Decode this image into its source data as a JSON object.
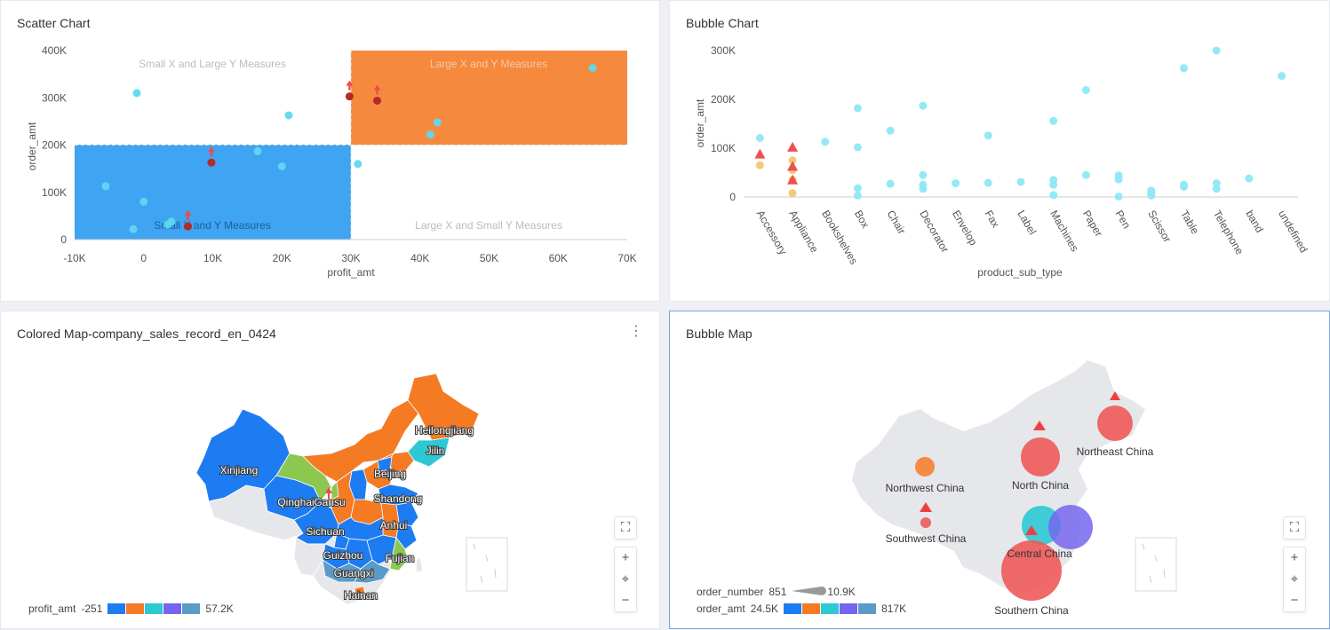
{
  "panels": {
    "scatter": {
      "title": "Scatter Chart",
      "quadrants": {
        "top_left": "Small X and Large Y Measures",
        "top_right": "Large X and Y Measures",
        "bottom_left": "Small X and Y Measures",
        "bottom_right": "Large X and Small Y Measures"
      },
      "colors": {
        "bottom_left_fill": "#2a9af0",
        "top_right_fill": "#f47a24",
        "point": "#5fd8f0",
        "highlight": "#b32a2a",
        "arrow": "#f04a4a"
      }
    },
    "bubble": {
      "title": "Bubble Chart",
      "colors": {
        "point": "#8ee8f5",
        "triangle": "#ee4f4f",
        "yellow": "#f3c97a"
      }
    },
    "colored_map": {
      "title": "Colored Map-company_sales_record_en_0424",
      "more_icon": "⋮",
      "provinces": [
        "Heilongjiang",
        "Jilin",
        "Beijing",
        "Xinjiang",
        "Qinghai",
        "Gansu",
        "Shandong",
        "Sichuan",
        "Anhui",
        "Guizhou",
        "Fujian",
        "Guangxi",
        "Hainan"
      ],
      "legend": {
        "label": "profit_amt",
        "min": "-251",
        "max": "57.2K",
        "colors": [
          "#1e7cf2",
          "#f47a24",
          "#2cc9d4",
          "#7466ee",
          "#5a9bc8"
        ]
      },
      "map_colors": {
        "blue": "#1e7cf2",
        "orange": "#f47a24",
        "teal": "#2cc9d4",
        "green": "#8cc850",
        "gray": "#e6e7ea",
        "lightblue": "#5a9bc8"
      }
    },
    "bubble_map": {
      "title": "Bubble Map",
      "regions": [
        "Northeast China",
        "North China",
        "Northwest China",
        "Central China",
        "Southwest China",
        "Southern China"
      ],
      "legend": {
        "size_label": "order_number",
        "size_min": "851",
        "size_max": "10.9K",
        "color_label": "order_amt",
        "color_min": "24.5K",
        "color_max": "817K",
        "colors": [
          "#1e7cf2",
          "#f47a24",
          "#2cc9d4",
          "#7466ee",
          "#5a9bc8"
        ]
      }
    }
  },
  "map_controls": {
    "fullscreen": "⛶",
    "zoom_in": "+",
    "locate": "⌖",
    "zoom_out": "−"
  },
  "chart_data": [
    {
      "type": "scatter",
      "title": "Scatter Chart",
      "xlabel": "profit_amt",
      "ylabel": "order_amt",
      "xlim": [
        -10000,
        70000
      ],
      "ylim": [
        0,
        400000
      ],
      "x_ticks": [
        "-10K",
        "0",
        "10K",
        "20K",
        "30K",
        "40K",
        "50K",
        "60K",
        "70K"
      ],
      "y_ticks": [
        "0",
        "100K",
        "200K",
        "300K",
        "400K"
      ],
      "reference_x": 30000,
      "reference_y": 200000,
      "points": [
        {
          "x": -1000,
          "y": 310000
        },
        {
          "x": 21000,
          "y": 263000
        },
        {
          "x": 65000,
          "y": 363000
        },
        {
          "x": 42500,
          "y": 248000
        },
        {
          "x": 41500,
          "y": 222000
        },
        {
          "x": 16500,
          "y": 187000
        },
        {
          "x": 20000,
          "y": 155000
        },
        {
          "x": 31000,
          "y": 160000
        },
        {
          "x": -5500,
          "y": 113000
        },
        {
          "x": 0,
          "y": 80000
        },
        {
          "x": 4000,
          "y": 38000
        },
        {
          "x": 3500,
          "y": 32000
        },
        {
          "x": -1500,
          "y": 22000
        }
      ],
      "highlighted_points": [
        {
          "x": 29800,
          "y": 303000
        },
        {
          "x": 33800,
          "y": 294000
        },
        {
          "x": 9800,
          "y": 163000
        },
        {
          "x": 6400,
          "y": 28000
        }
      ]
    },
    {
      "type": "scatter",
      "title": "Bubble Chart",
      "xlabel": "product_sub_type",
      "ylabel": "order_amt",
      "ylim": [
        0,
        300000
      ],
      "y_ticks": [
        "0",
        "100K",
        "200K",
        "300K"
      ],
      "categories": [
        "Accessory",
        "Appliance",
        "Bookshelves",
        "Box",
        "Chair",
        "Decorator",
        "Envelop",
        "Fax",
        "Label",
        "Machines",
        "Paper",
        "Pen",
        "Scissor",
        "Table",
        "Telephone",
        "band",
        "undefined"
      ],
      "points": [
        {
          "category": "Accessory",
          "y": 121000
        },
        {
          "category": "Bookshelves",
          "y": 113000
        },
        {
          "category": "Box",
          "y": 182000
        },
        {
          "category": "Box",
          "y": 102000
        },
        {
          "category": "Box",
          "y": 18000
        },
        {
          "category": "Box",
          "y": 3000
        },
        {
          "category": "Chair",
          "y": 136000
        },
        {
          "category": "Chair",
          "y": 27000
        },
        {
          "category": "Decorator",
          "y": 187000
        },
        {
          "category": "Decorator",
          "y": 45000
        },
        {
          "category": "Decorator",
          "y": 25000
        },
        {
          "category": "Decorator",
          "y": 17000
        },
        {
          "category": "Envelop",
          "y": 28000
        },
        {
          "category": "Fax",
          "y": 126000
        },
        {
          "category": "Fax",
          "y": 29000
        },
        {
          "category": "Label",
          "y": 31000
        },
        {
          "category": "Machines",
          "y": 156000
        },
        {
          "category": "Machines",
          "y": 35000
        },
        {
          "category": "Machines",
          "y": 25000
        },
        {
          "category": "Machines",
          "y": 4000
        },
        {
          "category": "Paper",
          "y": 219000
        },
        {
          "category": "Paper",
          "y": 45000
        },
        {
          "category": "Pen",
          "y": 44000
        },
        {
          "category": "Pen",
          "y": 36000
        },
        {
          "category": "Pen",
          "y": 1000
        },
        {
          "category": "Scissor",
          "y": 13000
        },
        {
          "category": "Scissor",
          "y": 8000
        },
        {
          "category": "Scissor",
          "y": 3000
        },
        {
          "category": "Table",
          "y": 264000
        },
        {
          "category": "Table",
          "y": 25000
        },
        {
          "category": "Table",
          "y": 21000
        },
        {
          "category": "Telephone",
          "y": 300000
        },
        {
          "category": "Telephone",
          "y": 28000
        },
        {
          "category": "Telephone",
          "y": 17000
        },
        {
          "category": "band",
          "y": 38000
        },
        {
          "category": "undefined",
          "y": 248000
        }
      ],
      "highlighted_points": [
        {
          "category": "Accessory",
          "y": 65000
        },
        {
          "category": "Appliance",
          "y": 75000
        },
        {
          "category": "Appliance",
          "y": 55000
        },
        {
          "category": "Appliance",
          "y": 35000
        },
        {
          "category": "Appliance",
          "y": 8000
        }
      ],
      "triangles": [
        {
          "category": "Accessory",
          "y": 88000
        },
        {
          "category": "Appliance",
          "y": 102000
        },
        {
          "category": "Appliance",
          "y": 63000
        },
        {
          "category": "Appliance",
          "y": 35000
        }
      ]
    }
  ]
}
